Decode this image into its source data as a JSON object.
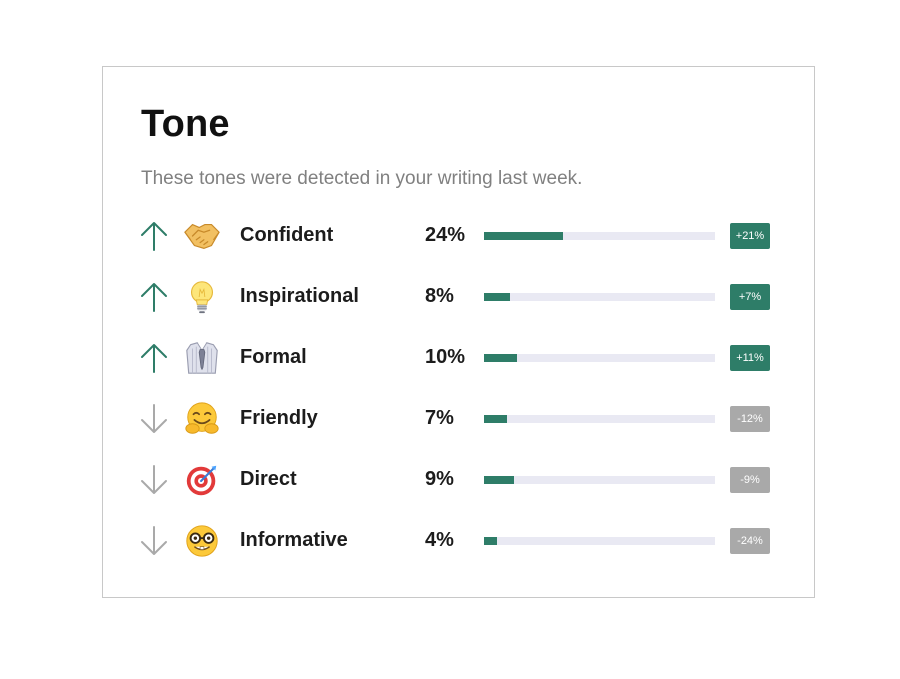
{
  "card": {
    "title": "Tone",
    "subtitle": "These tones were detected in your writing last week."
  },
  "colors": {
    "up": "#2e7d68",
    "down": "#a9a9a9",
    "bar_fill": "#2e7d68",
    "bar_track": "#e9e9f3",
    "badge_up": "#2e7d68",
    "badge_down": "#a9a9a9"
  },
  "tones": [
    {
      "label": "Confident",
      "percent_text": "24%",
      "percent": 24,
      "change": "+21%",
      "trend": "up",
      "icon": "handshake-icon"
    },
    {
      "label": "Inspirational",
      "percent_text": "8%",
      "percent": 8,
      "change": "+7%",
      "trend": "up",
      "icon": "light-bulb-icon"
    },
    {
      "label": "Formal",
      "percent_text": "10%",
      "percent": 10,
      "change": "+11%",
      "trend": "up",
      "icon": "shirt-tie-icon"
    },
    {
      "label": "Friendly",
      "percent_text": "7%",
      "percent": 7,
      "change": "-12%",
      "trend": "down",
      "icon": "hugging-face-icon"
    },
    {
      "label": "Direct",
      "percent_text": "9%",
      "percent": 9,
      "change": "-9%",
      "trend": "down",
      "icon": "target-dart-icon"
    },
    {
      "label": "Informative",
      "percent_text": "4%",
      "percent": 4,
      "change": "-24%",
      "trend": "down",
      "icon": "nerd-face-icon"
    }
  ]
}
